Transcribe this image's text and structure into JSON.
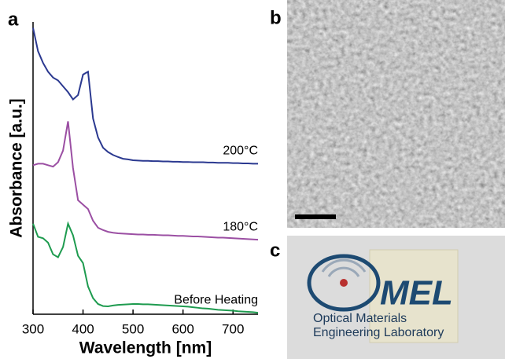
{
  "chart_data": {
    "type": "line",
    "xlabel": "Wavelength [nm]",
    "ylabel": "Absorbance [a.u.]",
    "xlim": [
      300,
      750
    ],
    "xticks": [
      300,
      400,
      500,
      600,
      700
    ],
    "ylim": [
      0,
      10
    ],
    "x": [
      300,
      310,
      320,
      330,
      340,
      350,
      360,
      370,
      380,
      390,
      400,
      410,
      420,
      430,
      440,
      450,
      460,
      470,
      480,
      490,
      500,
      510,
      520,
      530,
      540,
      550,
      560,
      570,
      580,
      590,
      600,
      610,
      620,
      630,
      640,
      650,
      660,
      670,
      680,
      690,
      700,
      710,
      720,
      730,
      740,
      750
    ],
    "series": [
      {
        "name": "200°C",
        "color": "#2b3990",
        "values": [
          9.8,
          9.0,
          8.6,
          8.3,
          8.1,
          8.0,
          7.8,
          7.6,
          7.35,
          7.5,
          8.2,
          8.3,
          6.7,
          6.05,
          5.7,
          5.55,
          5.45,
          5.38,
          5.32,
          5.3,
          5.27,
          5.26,
          5.25,
          5.25,
          5.24,
          5.24,
          5.23,
          5.23,
          5.22,
          5.22,
          5.21,
          5.21,
          5.2,
          5.2,
          5.2,
          5.19,
          5.19,
          5.18,
          5.18,
          5.18,
          5.17,
          5.17,
          5.16,
          5.16,
          5.15,
          5.15
        ]
      },
      {
        "name": "180°C",
        "color": "#9b4fa3",
        "values": [
          5.1,
          5.15,
          5.15,
          5.1,
          5.05,
          5.2,
          5.6,
          6.6,
          5.0,
          3.9,
          3.75,
          3.6,
          3.2,
          2.96,
          2.88,
          2.82,
          2.79,
          2.77,
          2.76,
          2.75,
          2.74,
          2.73,
          2.73,
          2.72,
          2.72,
          2.71,
          2.7,
          2.7,
          2.69,
          2.68,
          2.68,
          2.67,
          2.66,
          2.66,
          2.65,
          2.64,
          2.63,
          2.62,
          2.62,
          2.61,
          2.6,
          2.59,
          2.58,
          2.57,
          2.56,
          2.55
        ]
      },
      {
        "name": "Before Heating",
        "color": "#1e9b4f",
        "values": [
          3.1,
          2.65,
          2.6,
          2.45,
          2.05,
          1.95,
          2.3,
          3.1,
          2.7,
          2.0,
          1.75,
          0.95,
          0.55,
          0.35,
          0.28,
          0.27,
          0.3,
          0.32,
          0.33,
          0.34,
          0.35,
          0.35,
          0.34,
          0.34,
          0.33,
          0.32,
          0.31,
          0.3,
          0.29,
          0.28,
          0.27,
          0.26,
          0.24,
          0.22,
          0.2,
          0.19,
          0.17,
          0.15,
          0.14,
          0.13,
          0.12,
          0.1,
          0.09,
          0.08,
          0.07,
          0.05
        ]
      }
    ]
  },
  "panels": {
    "a": "a",
    "b": "b",
    "c": "c",
    "logo": {
      "mark": "MEL",
      "line1": "Optical Materials",
      "line2": "Engineering Laboratory"
    }
  }
}
